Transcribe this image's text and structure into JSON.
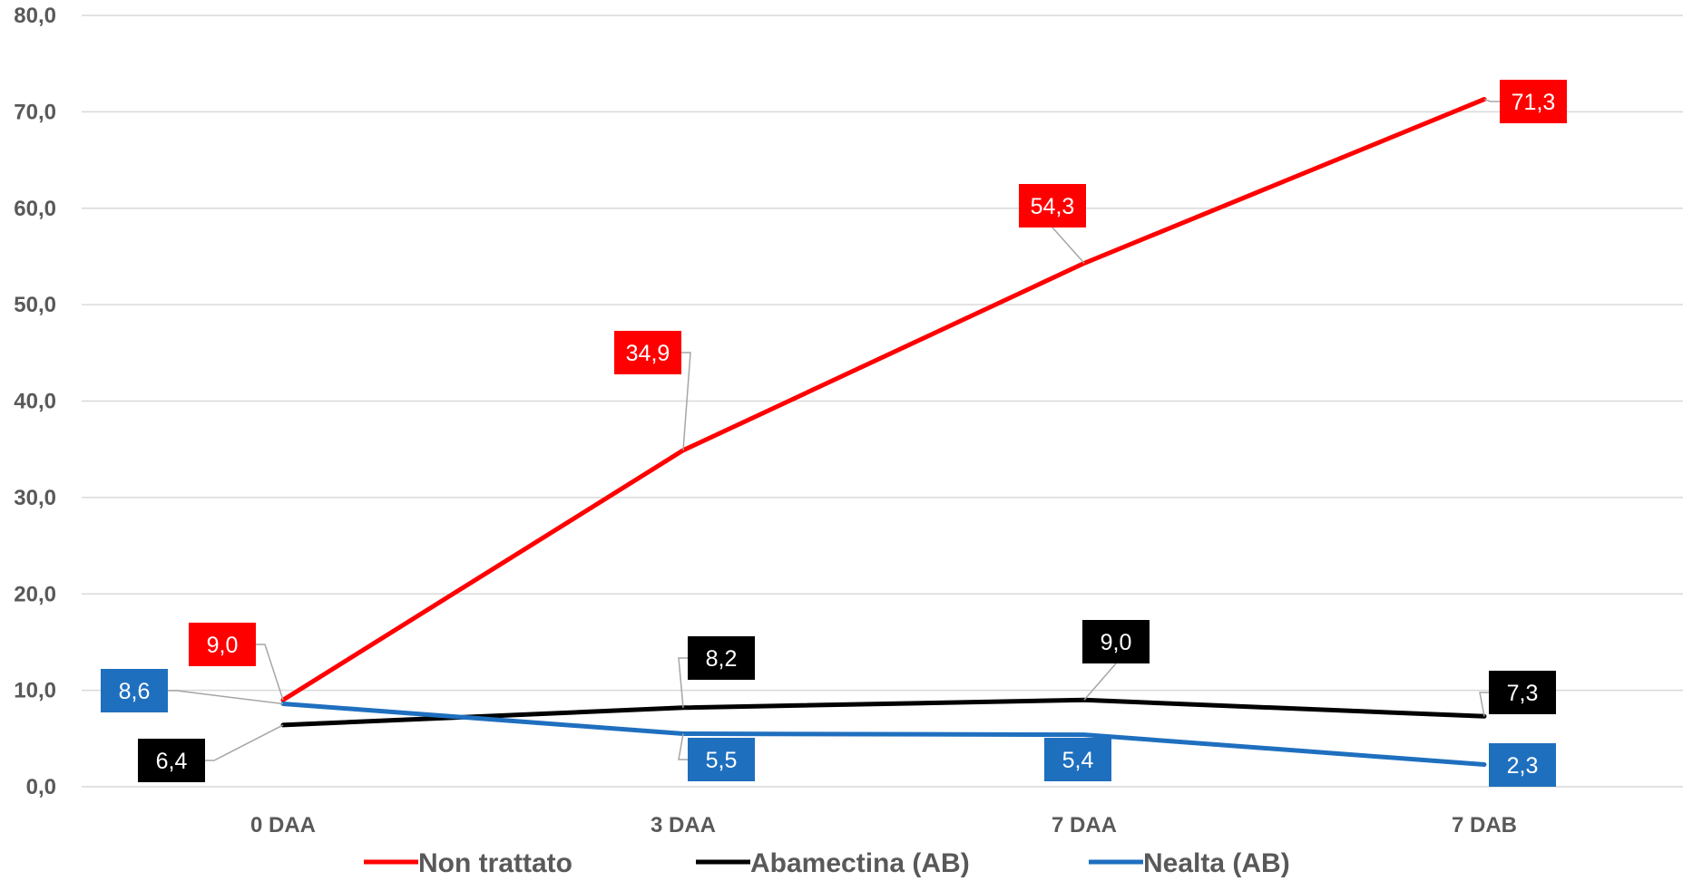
{
  "chart_data": {
    "type": "line",
    "categories": [
      "0 DAA",
      "3 DAA",
      "7 DAA",
      "7 DAB"
    ],
    "ylim": [
      0,
      80
    ],
    "yticks": [
      "0,0",
      "10,0",
      "20,0",
      "30,0",
      "40,0",
      "50,0",
      "60,0",
      "70,0",
      "80,0"
    ],
    "grid": true,
    "legend_position": "bottom",
    "series": [
      {
        "name": "Non trattato",
        "color": "#FF0000",
        "values": [
          9.0,
          34.9,
          54.3,
          71.3
        ],
        "labels": [
          "9,0",
          "34,9",
          "54,3",
          "71,3"
        ]
      },
      {
        "name": "Abamectina (AB)",
        "color": "#000000",
        "values": [
          6.4,
          8.2,
          9.0,
          7.3
        ],
        "labels": [
          "6,4",
          "8,2",
          "9,0",
          "7,3"
        ]
      },
      {
        "name": "Nealta (AB)",
        "color": "#1F6FBF",
        "values": [
          8.6,
          5.5,
          5.4,
          2.3
        ],
        "labels": [
          "8,6",
          "5,5",
          "5,4",
          "2,3"
        ]
      }
    ]
  }
}
